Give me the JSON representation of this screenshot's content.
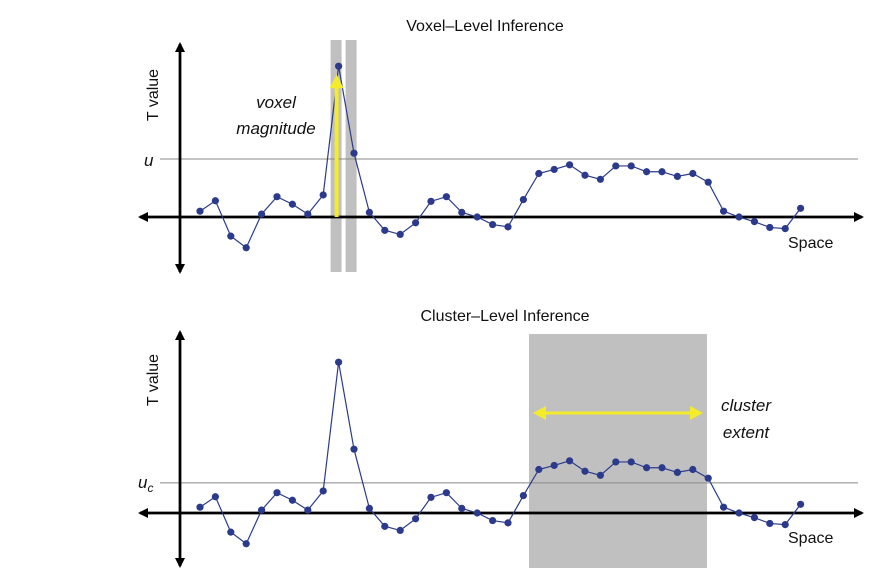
{
  "colors": {
    "series": "#2c3a8c",
    "highlight": "#c0c0c0",
    "arrow": "#f4ec2a",
    "axis": "#000000",
    "threshold": "#888888"
  },
  "chart_data": [
    {
      "type": "line",
      "title": "Voxel–Level Inference",
      "xlabel": "Space",
      "ylabel": "T value",
      "threshold_label": "u",
      "threshold": 1.0,
      "annotation": [
        "voxel",
        "magnitude"
      ],
      "highlight": "vertical bars around the peak (points 10–11)",
      "values": [
        0.1,
        0.28,
        -0.33,
        -0.53,
        0.05,
        0.35,
        0.22,
        0.05,
        0.38,
        2.6,
        1.1,
        0.08,
        -0.23,
        -0.3,
        -0.1,
        0.27,
        0.35,
        0.08,
        0.0,
        -0.13,
        -0.17,
        0.3,
        0.75,
        0.82,
        0.9,
        0.72,
        0.65,
        0.88,
        0.88,
        0.78,
        0.78,
        0.7,
        0.75,
        0.6,
        0.1,
        0.0,
        -0.08,
        -0.18,
        -0.2,
        0.15
      ]
    },
    {
      "type": "line",
      "title": "Cluster–Level Inference",
      "xlabel": "Space",
      "ylabel": "T value",
      "threshold_label": "u",
      "threshold_label_sub": "c",
      "threshold": 0.52,
      "annotation": [
        "cluster",
        "extent"
      ],
      "highlight": "shaded region over points 23–35",
      "values": [
        0.1,
        0.28,
        -0.33,
        -0.53,
        0.05,
        0.35,
        0.22,
        0.05,
        0.38,
        2.6,
        1.1,
        0.08,
        -0.23,
        -0.3,
        -0.1,
        0.27,
        0.35,
        0.08,
        0.0,
        -0.13,
        -0.17,
        0.3,
        0.75,
        0.82,
        0.9,
        0.72,
        0.65,
        0.88,
        0.88,
        0.78,
        0.78,
        0.7,
        0.75,
        0.6,
        0.1,
        0.0,
        -0.08,
        -0.18,
        -0.2,
        0.15
      ]
    }
  ]
}
